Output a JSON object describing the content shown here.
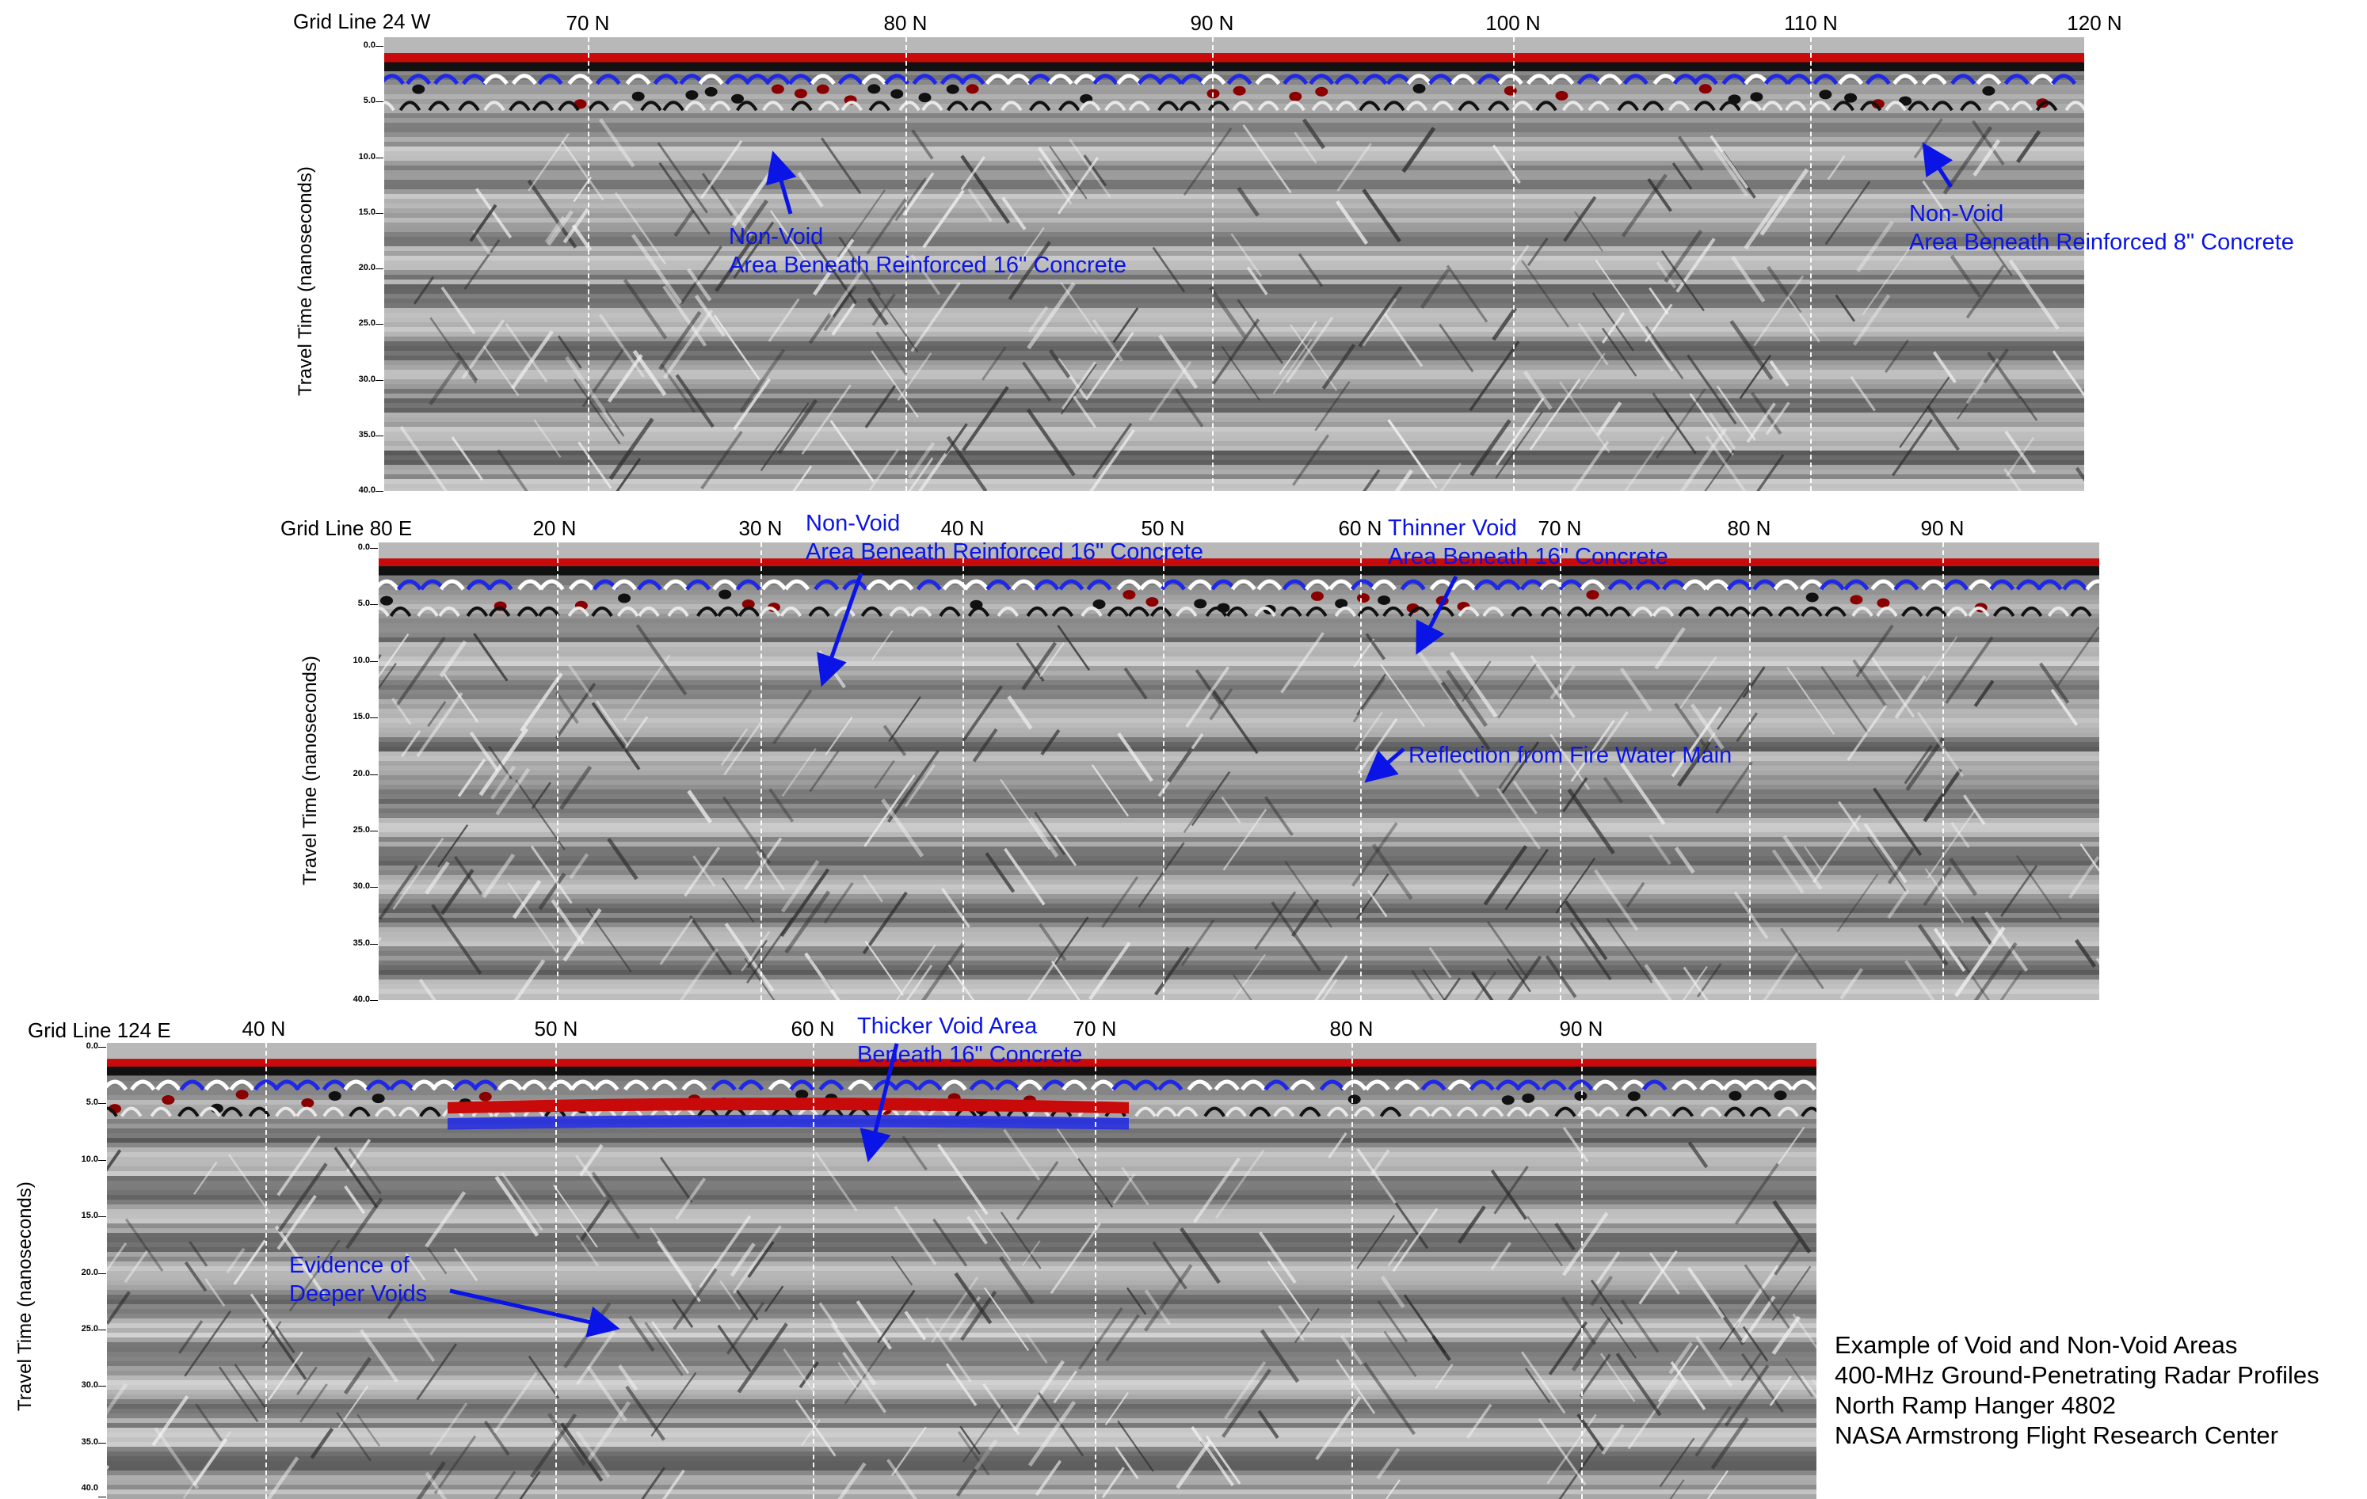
{
  "panels": [
    {
      "title": "Grid Line 24 W",
      "ylabel": "Travel Time (nanoseconds)",
      "yticks": [
        "0.0",
        "5.0",
        "10.0",
        "15.0",
        "20.0",
        "25.0",
        "30.0",
        "35.0",
        "40.0"
      ],
      "xticks": [
        "70 N",
        "80 N",
        "90 N",
        "100 N",
        "110 N",
        "120 N"
      ],
      "annotations": [
        {
          "line1": "Non-Void",
          "line2": "Area Beneath Reinforced 16\" Concrete"
        },
        {
          "line1": "Non-Void",
          "line2": "Area Beneath Reinforced 8\" Concrete"
        }
      ]
    },
    {
      "title": "Grid Line 80 E",
      "ylabel": "Travel Time (nanoseconds)",
      "yticks": [
        "0.0",
        "5.0",
        "10.0",
        "15.0",
        "20.0",
        "25.0",
        "30.0",
        "35.0",
        "40.0"
      ],
      "xticks": [
        "20 N",
        "30 N",
        "40 N",
        "50 N",
        "60 N",
        "70 N",
        "80 N",
        "90 N"
      ],
      "annotations": [
        {
          "line1": "Non-Void",
          "line2": "Area Beneath Reinforced 16\" Concrete"
        },
        {
          "line1": "Thinner Void",
          "line2": "Area Beneath 16\" Concrete"
        },
        {
          "line1": "Reflection from Fire Water Main",
          "line2": ""
        }
      ]
    },
    {
      "title": "Grid Line 124 E",
      "ylabel": "Travel Time (nanoseconds)",
      "yticks": [
        "0.0",
        "5.0",
        "10.0",
        "15.0",
        "20.0",
        "25.0",
        "30.0",
        "35.0",
        "40.0"
      ],
      "xticks": [
        "40 N",
        "50 N",
        "60 N",
        "70 N",
        "80 N",
        "90 N"
      ],
      "annotations": [
        {
          "line1": "Thicker Void Area",
          "line2": "Beneath 16\" Concrete"
        },
        {
          "line1": "Evidence of",
          "line2": "Deeper Voids"
        }
      ]
    }
  ],
  "caption": {
    "line1": "Example of Void and Non-Void Areas",
    "line2": "400-MHz Ground-Penetrating Radar Profiles",
    "line3": "North Ramp Hanger 4802",
    "line4": "NASA Armstrong Flight Research Center"
  },
  "colors": {
    "annotation": "#0a14e6",
    "reflection_red": "#c80a0a",
    "reflection_blue": "#1e28e6",
    "background_gray": "#9a9a9a"
  }
}
